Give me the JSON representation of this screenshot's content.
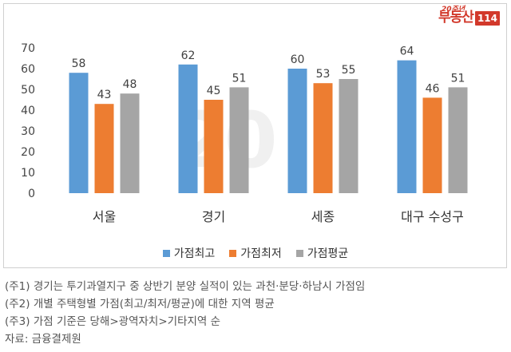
{
  "brand": {
    "anniversary": "20주년",
    "name": "부동산",
    "number": "114"
  },
  "chart_data": {
    "type": "bar",
    "categories": [
      "서울",
      "경기",
      "세종",
      "대구 수성구"
    ],
    "ylim": [
      0,
      70
    ],
    "yticks": [
      0,
      10,
      20,
      30,
      40,
      50,
      60,
      70
    ],
    "grid": false,
    "legend_position": "bottom",
    "series": [
      {
        "name": "가점최고",
        "color": "#5b9bd5",
        "values": [
          58,
          62,
          60,
          64
        ]
      },
      {
        "name": "가점최저",
        "color": "#ed7d31",
        "values": [
          43,
          45,
          53,
          46
        ]
      },
      {
        "name": "가점평균",
        "color": "#a5a5a5",
        "values": [
          48,
          51,
          55,
          51
        ]
      }
    ]
  },
  "notes": [
    "(주1) 경기는 투기과열지구 중 상반기 분양 실적이 있는 과천·분당·하남시 가점임",
    "(주2) 개별 주택형별 가점(최고/최저/평균)에 대한 지역 평균",
    "(주3) 가점 기준은 당해>광역자치>기타지역 순",
    "자료: 금융결제원"
  ]
}
